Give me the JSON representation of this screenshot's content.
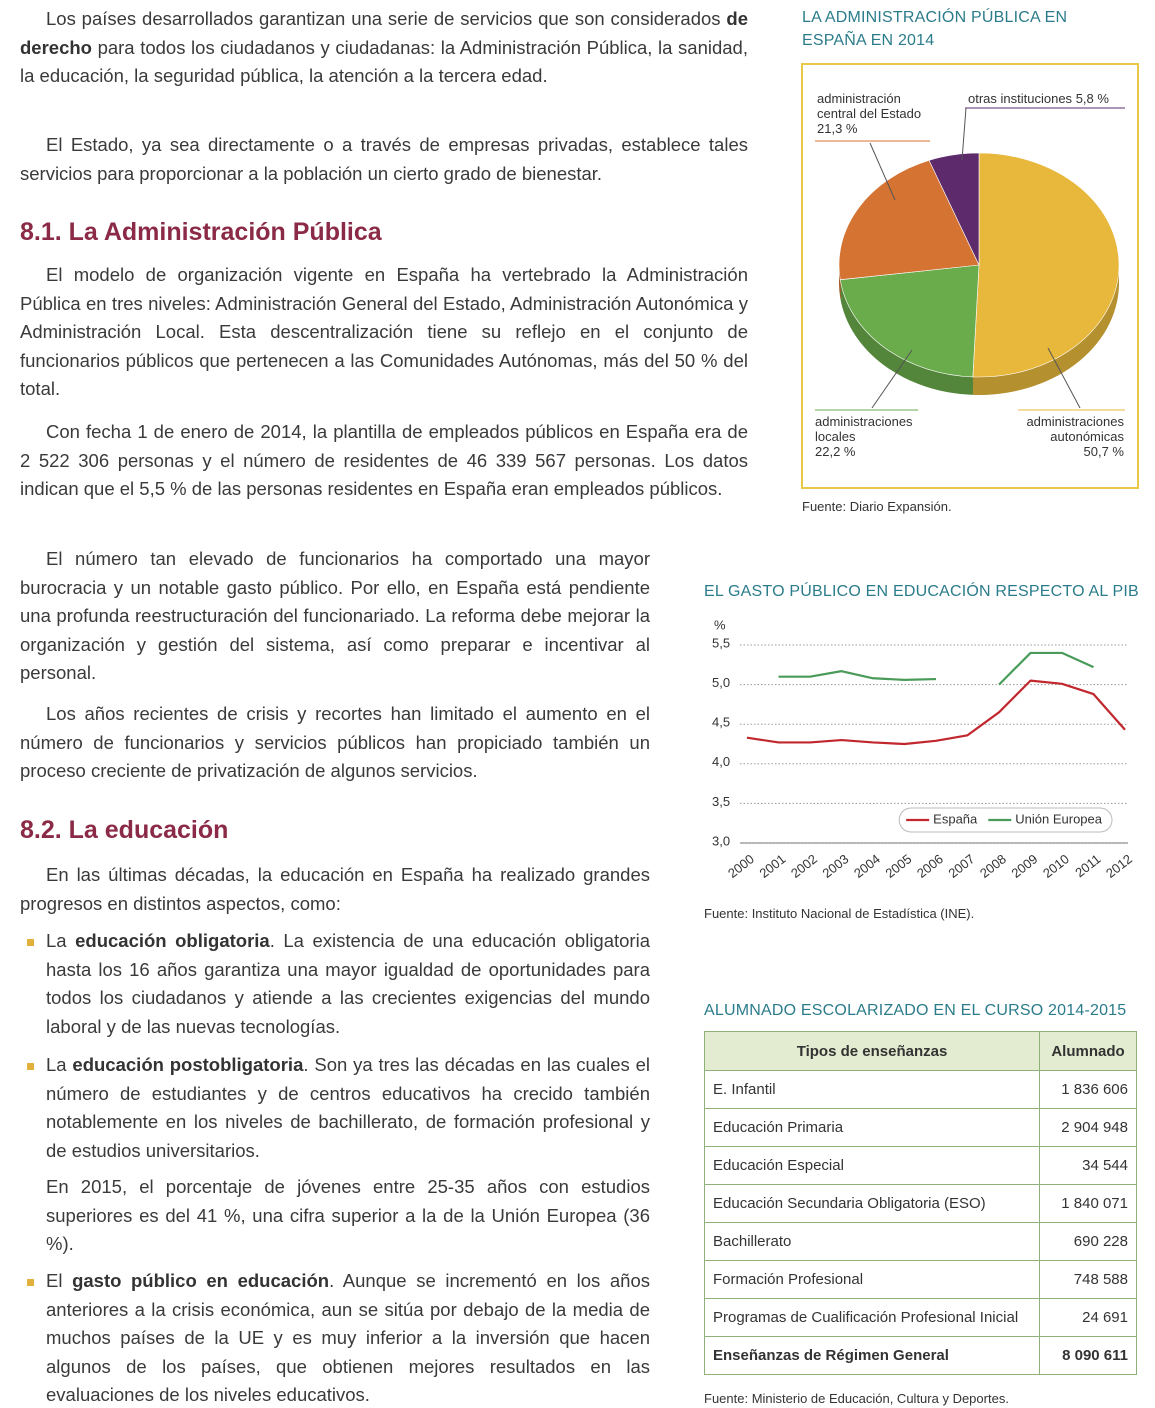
{
  "intro": {
    "paragraphs": [
      [
        "Los países desarrollados garantizan una serie de servicios que son considerados ",
        "de derecho",
        " para todos los ciudadanos y ciudadanas: la Administración Pública, la sanidad, la educación, la seguridad pública, la atención a la tercera edad."
      ],
      [
        "El Estado, ya sea directamente o a través de empresas privadas, establece tales servicios para proporcionar a la población un cierto grado de bienestar."
      ]
    ]
  },
  "section_1": {
    "heading": "8.1. La Administración Pública",
    "paragraphs": [
      "El modelo de organización vigente en España ha vertebrado la Administración Pública en tres niveles: Administración General del Estado, Administración Autonómica y Administración Local. Esta descentralización tiene su reflejo en el conjunto de funcionarios públicos que pertenecen a las Comunidades Autónomas, más del 50 % del total.",
      "Con fecha 1 de enero de 2014, la plantilla de empleados públicos en España era de 2 522 306 personas y el número de residentes de 46 339 567 personas. Los datos indican que el 5,5 % de las personas residentes en España eran empleados públicos.",
      "El número tan elevado de funcionarios ha comportado una mayor burocracia y un notable gasto público. Por ello, en España está pendiente una profunda reestructuración del funcionariado. La reforma debe mejorar la organización y gestión del sistema, así como preparar e incentivar al personal.",
      "Los años recientes de crisis y recortes han limitado el aumento en el número de funcionarios y servicios públicos han propiciado también un proceso creciente de privatización de algunos servicios."
    ]
  },
  "section_2": {
    "heading": "8.2. La educación",
    "paragraphs": [
      "En las últimas décadas, la educación en España ha realizado grandes progresos en distintos aspectos, como:"
    ],
    "bullets": [
      [
        "La ",
        "educación obligatoria",
        ". La existencia de una educación obligatoria hasta los 16 años garantiza una mayor igualdad de oportunidades para todos los ciudadanos y atiende a las crecientes exigencias del mundo laboral y de las nuevas tecnologías."
      ],
      [
        "La ",
        "educación postobligatoria",
        ". Son ya tres las décadas en las cuales el número de estudiantes y de centros educativos ha crecido también notablemente en los niveles de bachillerato, de formación profesional y de estudios universitarios."
      ],
      [
        "El ",
        "gasto público en educación",
        ". Aunque se incrementó en los años anteriores a la crisis económica, aun se sitúa por debajo de la media de muchos países de la UE y es muy inferior a la inversión que hacen algunos de los países, que obtienen mejores resultados en las evaluaciones de los niveles educativos."
      ]
    ],
    "bullet_note": "En 2015, el porcentaje de jóvenes entre 25-35 años con estudios superiores es del 41 %, una cifra superior a la de la Unión Europea (36 %)."
  },
  "chart_data": [
    {
      "type": "pie",
      "title": "LA ADMINISTRACIÓN PÚBLICA EN ESPAÑA EN 2014",
      "categories": [
        "administraciones autonómicas",
        "administraciones locales",
        "administración central del Estado",
        "otras instituciones"
      ],
      "values": [
        50.7,
        22.2,
        21.3,
        5.8
      ],
      "value_labels": [
        "50,7 %",
        "22,2 %",
        "21,3 %",
        "5,8 %"
      ],
      "colors": [
        "#e8b83c",
        "#6aab4c",
        "#d47332",
        "#5d2a6c"
      ],
      "source": "Fuente: Diario Expansión."
    },
    {
      "type": "line",
      "title": "EL GASTO PÚBLICO EN EDUCACIÓN RESPECTO AL PIB",
      "y_label": "%",
      "categories": [
        "2000",
        "2001",
        "2002",
        "2003",
        "2004",
        "2005",
        "2006",
        "2007",
        "2008",
        "2009",
        "2010",
        "2011",
        "2012"
      ],
      "series": [
        {
          "name": "España",
          "color": "#c1272d",
          "values": [
            4.33,
            4.27,
            4.27,
            4.3,
            4.27,
            4.25,
            4.29,
            4.36,
            4.65,
            5.05,
            5.01,
            4.88,
            4.43
          ]
        },
        {
          "name": "Unión Europea",
          "color": "#4a9a5a",
          "values": [
            null,
            5.1,
            5.1,
            5.17,
            5.08,
            5.06,
            5.07,
            null,
            5.0,
            5.4,
            5.4,
            5.22,
            null
          ]
        }
      ],
      "ylim": [
        3,
        5.5
      ],
      "yticks": [
        {
          "value": 3,
          "label": "3,0"
        },
        {
          "value": 3.5,
          "label": "3,5"
        },
        {
          "value": 4,
          "label": "4,0"
        },
        {
          "value": 4.5,
          "label": "4,5"
        },
        {
          "value": 5,
          "label": "5,0"
        },
        {
          "value": 5.5,
          "label": "5,5"
        }
      ],
      "grid": true,
      "legend": "lower right",
      "source": "Fuente: Instituto Nacional de Estadística (INE)."
    }
  ],
  "table": {
    "title": "ALUMNADO ESCOLARIZADO EN EL CURSO 2014-2015",
    "header": [
      "Tipos de enseñanzas",
      "Alumnado"
    ],
    "rows": [
      [
        "E. Infantil",
        "1 836 606"
      ],
      [
        "Educación Primaria",
        "2 904 948"
      ],
      [
        "Educación Especial",
        "34 544"
      ],
      [
        "Educación Secundaria Obligatoria (ESO)",
        "1 840 071"
      ],
      [
        "Bachillerato",
        "690 228"
      ],
      [
        "Formación Profesional",
        "748 588"
      ],
      [
        "Programas de Cualificación Profesional Inicial",
        "24 691"
      ],
      [
        "Enseñanzas de Régimen General",
        "8 090 611"
      ]
    ],
    "source": "Fuente: Ministerio de Educación, Cultura y Deportes."
  }
}
